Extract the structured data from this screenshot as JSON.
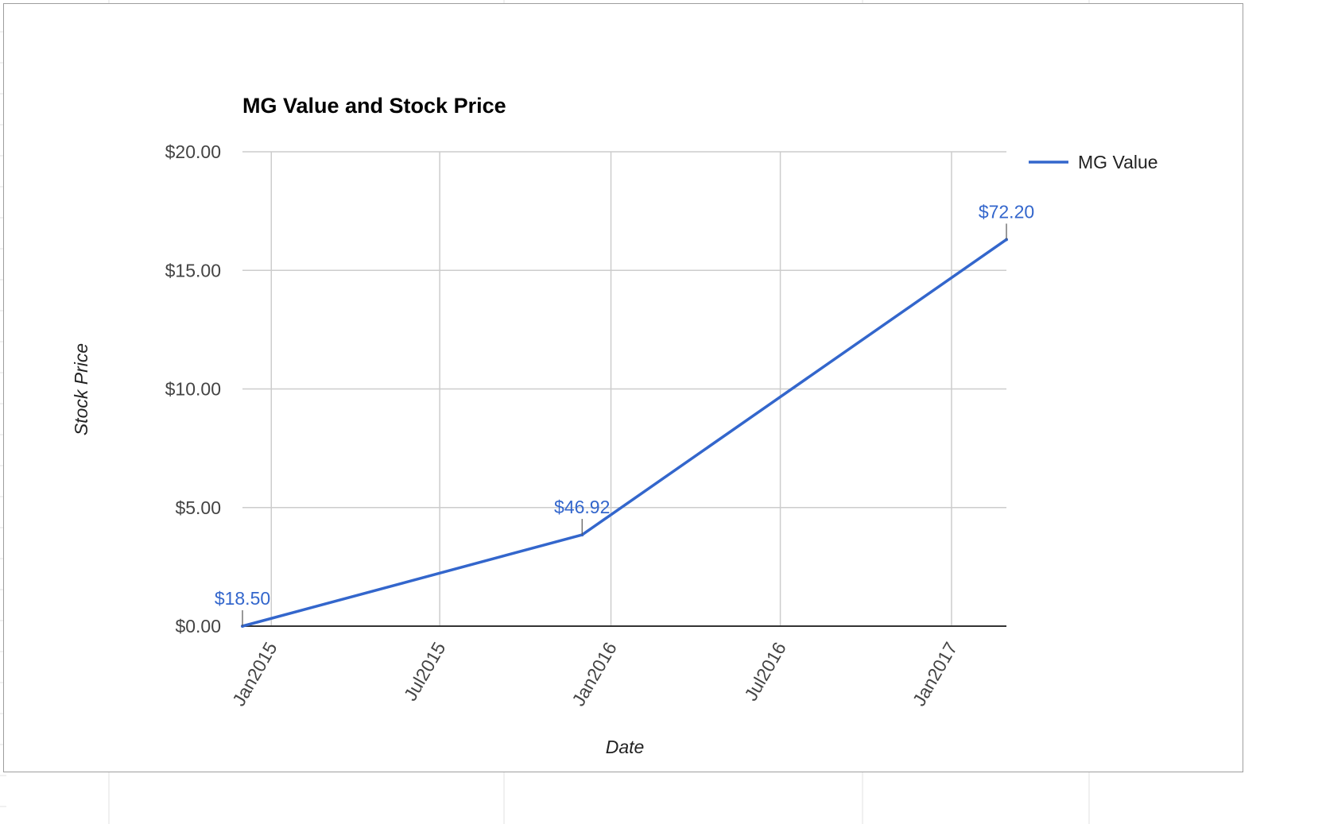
{
  "chart_data": {
    "type": "line",
    "title": "MG Value and Stock Price",
    "xlabel": "Date",
    "ylabel": "Stock Price",
    "x_ticks": [
      "Jan2015",
      "Jul2015",
      "Jan2016",
      "Jul2016",
      "Jan2017"
    ],
    "x_tick_dates": [
      "2015-01-01",
      "2015-07-01",
      "2016-01-01",
      "2016-07-01",
      "2017-01-01"
    ],
    "y_ticks": [
      "$0.00",
      "$5.00",
      "$10.00",
      "$15.00",
      "$20.00"
    ],
    "y_tick_values": [
      0,
      5,
      10,
      15,
      20
    ],
    "ylim": [
      0,
      20
    ],
    "xlim": [
      "2014-12-01",
      "2017-03-01"
    ],
    "grid": true,
    "legend_position": "right",
    "series": [
      {
        "name": "MG Value",
        "color": "#3366cc",
        "points": [
          {
            "x": "2014-12-01",
            "y": 0.0,
            "label": "$18.50"
          },
          {
            "x": "2015-12-01",
            "y": 3.85,
            "label": "$46.92"
          },
          {
            "x": "2017-03-01",
            "y": 16.3,
            "label": "$72.20"
          }
        ]
      }
    ]
  }
}
